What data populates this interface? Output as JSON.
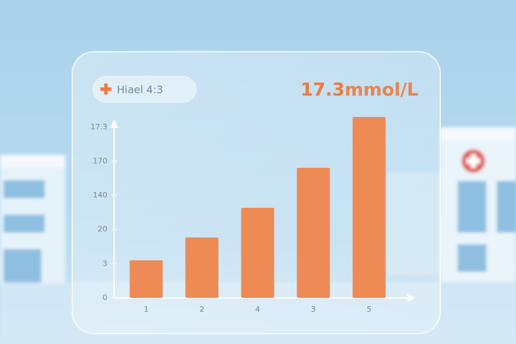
{
  "chart_data": {
    "type": "bar",
    "badge": "Hiael 4:3",
    "reading_value": "17.3",
    "reading_unit": "mmol/L",
    "categories": [
      "1",
      "2",
      "4",
      "3",
      "5"
    ],
    "values": [
      1.1,
      1.77,
      2.64,
      3.81,
      5.3
    ],
    "color": "#ee8a56",
    "ylim": [
      0,
      5.4
    ],
    "yticks": [
      {
        "value": 0,
        "label": "0"
      },
      {
        "value": 1,
        "label": "3"
      },
      {
        "value": 2,
        "label": "20"
      },
      {
        "value": 3,
        "label": "140"
      },
      {
        "value": 4,
        "label": "170"
      },
      {
        "value": 5,
        "label": "17.3"
      }
    ]
  }
}
